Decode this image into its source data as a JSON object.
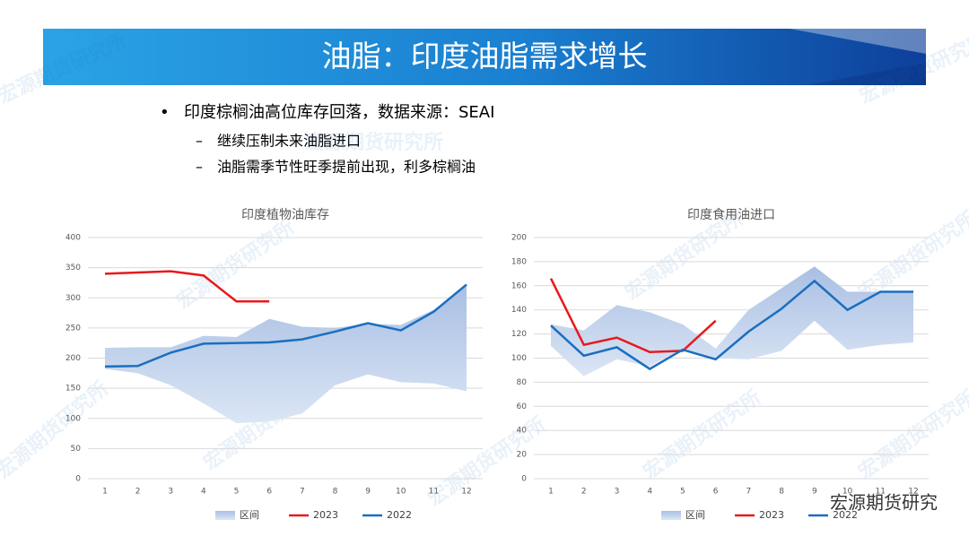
{
  "header": {
    "title": "油脂：印度油脂需求增长"
  },
  "bullets": {
    "main": "印度棕榈油高位库存回落，数据来源：SEAI",
    "subs": [
      "继续压制未来油脂进口",
      "油脂需季节性旺季提前出现，利多棕榈油"
    ]
  },
  "watermark": "宏源期货研究所",
  "logo": "宏源期货研究",
  "chart_data": [
    {
      "type": "line",
      "title": "印度植物油库存",
      "categories": [
        1,
        2,
        3,
        4,
        5,
        6,
        7,
        8,
        9,
        10,
        11,
        12
      ],
      "ylim": [
        0,
        400
      ],
      "yticks": [
        0,
        50,
        100,
        150,
        200,
        250,
        300,
        350,
        400
      ],
      "grid": true,
      "series": [
        {
          "name": "区间",
          "color": "#a9bfe3",
          "upper": [
            217,
            218,
            218,
            237,
            235,
            265,
            252,
            250,
            257,
            255,
            280,
            320
          ],
          "lower": [
            182,
            175,
            155,
            125,
            92,
            95,
            108,
            155,
            173,
            160,
            158,
            145
          ]
        },
        {
          "name": "2023",
          "color": "#e8191c",
          "values": [
            340,
            342,
            344,
            337,
            294,
            294,
            null,
            null,
            null,
            null,
            null,
            null
          ]
        },
        {
          "name": "2022",
          "color": "#1a6fc0",
          "values": [
            186,
            187,
            209,
            224,
            225,
            226,
            231,
            244,
            258,
            246,
            277,
            322
          ]
        }
      ]
    },
    {
      "type": "line",
      "title": "印度食用油进口",
      "categories": [
        1,
        2,
        3,
        4,
        5,
        6,
        7,
        8,
        9,
        10,
        11,
        12
      ],
      "ylim": [
        0,
        200
      ],
      "yticks": [
        0,
        20,
        40,
        60,
        80,
        100,
        120,
        140,
        160,
        180,
        200
      ],
      "grid": true,
      "series": [
        {
          "name": "区间",
          "color": "#a9bfe3",
          "upper": [
            128,
            123,
            144,
            138,
            128,
            108,
            140,
            158,
            176,
            155,
            155,
            155
          ],
          "lower": [
            110,
            85,
            99,
            93,
            108,
            100,
            99,
            106,
            131,
            107,
            111,
            113
          ]
        },
        {
          "name": "2023",
          "color": "#e8191c",
          "values": [
            166,
            111,
            117,
            105,
            106,
            131,
            null,
            null,
            null,
            null,
            null,
            null
          ]
        },
        {
          "name": "2022",
          "color": "#1a6fc0",
          "values": [
            127,
            102,
            109,
            91,
            107,
            99,
            122,
            141,
            164,
            140,
            155,
            155
          ]
        }
      ]
    }
  ]
}
